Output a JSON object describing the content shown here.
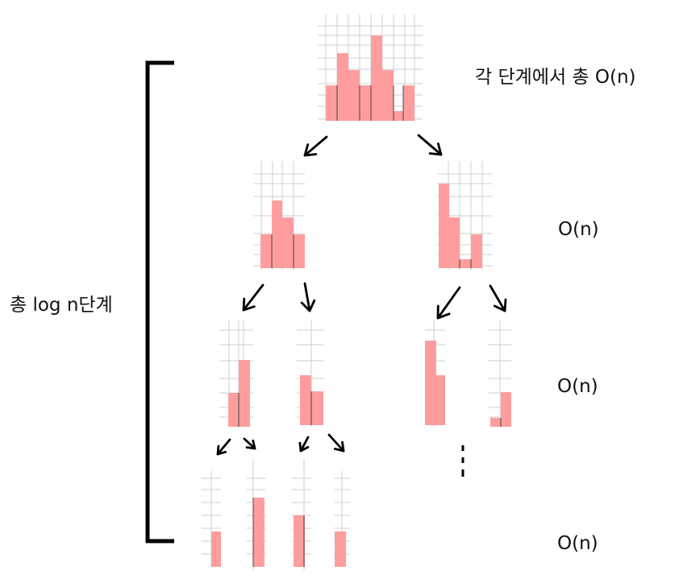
{
  "labels": {
    "per_level": "각 단계에서 총 O(n)",
    "total_levels": "총 log n단계",
    "level_1_cost": "O(n)",
    "level_2_cost": "O(n)",
    "level_3_cost": "O(n)"
  },
  "colors": {
    "bar": "#ff9d9e",
    "grid": "#cfcfcf",
    "ink": "#000000"
  }
}
